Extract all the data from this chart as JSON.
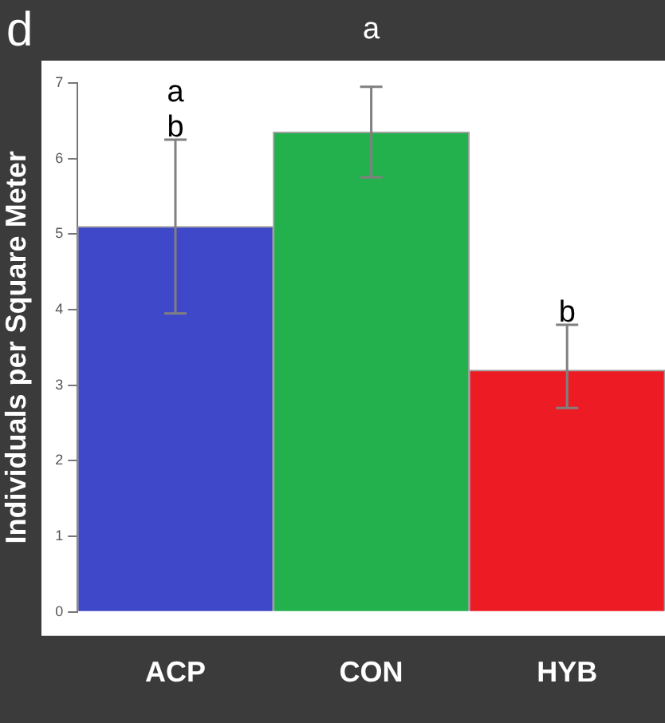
{
  "chart_data": {
    "type": "bar",
    "ylabel": "Individuals per Square Meter",
    "categories": [
      "ACP",
      "CON",
      "HYB"
    ],
    "values": [
      5.1,
      6.35,
      3.2
    ],
    "colors": [
      "#3f48c8",
      "#22b14c",
      "#ed1c24"
    ],
    "errors": [
      [
        3.95,
        6.25
      ],
      [
        5.75,
        6.95
      ],
      [
        2.7,
        3.8
      ]
    ],
    "ylim": [
      0,
      7
    ],
    "yticks": [
      0,
      1,
      2,
      3,
      4,
      5,
      6,
      7
    ],
    "grid": false,
    "legend": false,
    "annotations": [
      "d",
      "a b",
      "a",
      "b"
    ]
  }
}
